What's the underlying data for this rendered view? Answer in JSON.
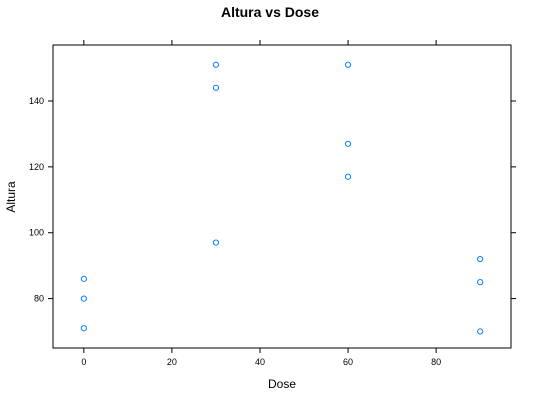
{
  "chart_data": {
    "type": "scatter",
    "title": "Altura vs Dose",
    "xlabel": "Dose",
    "ylabel": "Altura",
    "xlim": [
      -7,
      97
    ],
    "ylim": [
      65,
      157
    ],
    "x_ticks": [
      0,
      20,
      40,
      60,
      80
    ],
    "y_ticks": [
      80,
      100,
      120,
      140
    ],
    "grid": false,
    "marker_color": "#0080ff",
    "points": [
      {
        "x": 0,
        "y": 86
      },
      {
        "x": 0,
        "y": 80
      },
      {
        "x": 0,
        "y": 71
      },
      {
        "x": 30,
        "y": 151
      },
      {
        "x": 30,
        "y": 144
      },
      {
        "x": 30,
        "y": 97
      },
      {
        "x": 60,
        "y": 151
      },
      {
        "x": 60,
        "y": 127
      },
      {
        "x": 60,
        "y": 117
      },
      {
        "x": 90,
        "y": 92
      },
      {
        "x": 90,
        "y": 85
      },
      {
        "x": 90,
        "y": 70
      }
    ]
  }
}
